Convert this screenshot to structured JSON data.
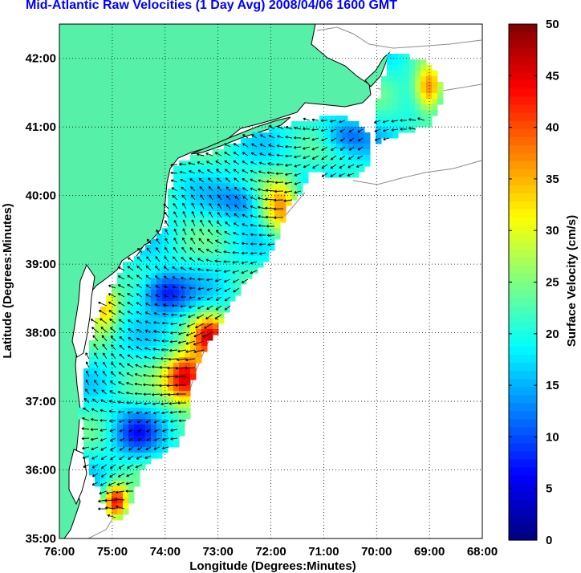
{
  "title": "Mid-Atlantic Raw Velocities (1 Day Avg) 2008/04/06 1600 GMT",
  "map": {
    "xlabel": "Longitude (Degrees:Minutes)",
    "ylabel": "Latitude (Degrees:Minutes)",
    "x_ticks": [
      "76:00",
      "75:00",
      "74:00",
      "73:00",
      "72:00",
      "71:00",
      "70:00",
      "69:00",
      "68:00"
    ],
    "y_ticks": [
      "42:00",
      "41:00",
      "40:00",
      "39:00",
      "38:00",
      "37:00",
      "36:00",
      "35:00"
    ],
    "lon_range": [
      -76,
      -68
    ],
    "lat_range": [
      35,
      42.5
    ],
    "grid": true,
    "colors": {
      "land": "#57f0a8",
      "water": "#ffffff",
      "coastline": "#000000",
      "bathymetry": "#8c8c8c",
      "arrows": "#000000"
    }
  },
  "colorbar": {
    "label": "Surface Velocity (cm/s)",
    "ticks": [
      "50",
      "45",
      "40",
      "35",
      "30",
      "25",
      "20",
      "15",
      "10",
      "5",
      "0"
    ],
    "range": [
      0,
      50
    ],
    "colormap": "jet"
  }
}
